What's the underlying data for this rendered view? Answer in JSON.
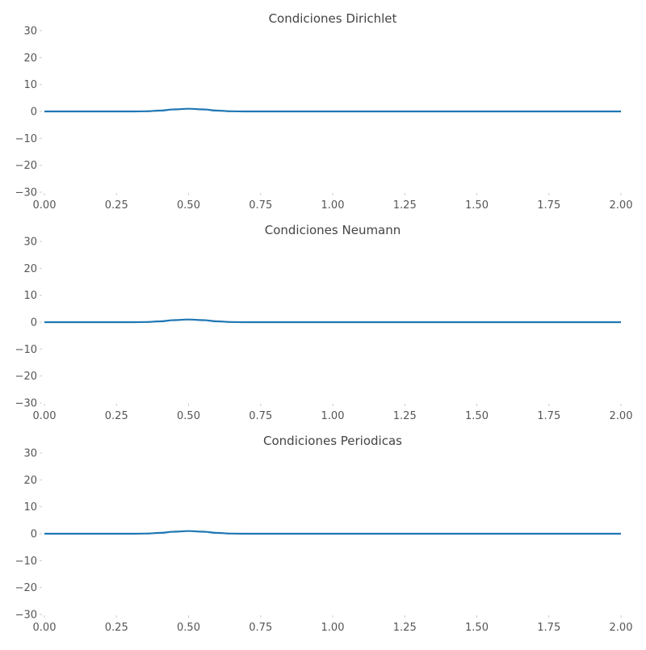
{
  "colors": {
    "series": "#1f77b4",
    "tick_text": "#555555",
    "title_text": "#444444",
    "background": "#ffffff"
  },
  "chart_data": [
    {
      "type": "line",
      "title": "Condiciones Dirichlet",
      "xlabel": "",
      "ylabel": "",
      "xlim": [
        0.0,
        2.0
      ],
      "ylim": [
        -30,
        30
      ],
      "xticks": [
        "0.00",
        "0.25",
        "0.50",
        "0.75",
        "1.00",
        "1.25",
        "1.50",
        "1.75",
        "2.00"
      ],
      "yticks": [
        "30",
        "20",
        "10",
        "0",
        "−10",
        "−20",
        "−30"
      ],
      "grid": false,
      "series": [
        {
          "x": [
            0.0,
            0.3,
            0.35,
            0.4,
            0.45,
            0.5,
            0.55,
            0.6,
            0.65,
            0.7,
            1.0,
            1.5,
            2.0
          ],
          "y": [
            0,
            0,
            0.05,
            0.3,
            0.75,
            1.0,
            0.75,
            0.3,
            0.05,
            0,
            0,
            0,
            0
          ]
        }
      ]
    },
    {
      "type": "line",
      "title": "Condiciones Neumann",
      "xlabel": "",
      "ylabel": "",
      "xlim": [
        0.0,
        2.0
      ],
      "ylim": [
        -30,
        30
      ],
      "xticks": [
        "0.00",
        "0.25",
        "0.50",
        "0.75",
        "1.00",
        "1.25",
        "1.50",
        "1.75",
        "2.00"
      ],
      "yticks": [
        "30",
        "20",
        "10",
        "0",
        "−10",
        "−20",
        "−30"
      ],
      "grid": false,
      "series": [
        {
          "x": [
            0.0,
            0.3,
            0.35,
            0.4,
            0.45,
            0.5,
            0.55,
            0.6,
            0.65,
            0.7,
            1.0,
            1.5,
            2.0
          ],
          "y": [
            0,
            0,
            0.05,
            0.3,
            0.75,
            1.0,
            0.75,
            0.3,
            0.05,
            0,
            0,
            0,
            0
          ]
        }
      ]
    },
    {
      "type": "line",
      "title": "Condiciones Periodicas",
      "xlabel": "",
      "ylabel": "",
      "xlim": [
        0.0,
        2.0
      ],
      "ylim": [
        -30,
        30
      ],
      "xticks": [
        "0.00",
        "0.25",
        "0.50",
        "0.75",
        "1.00",
        "1.25",
        "1.50",
        "1.75",
        "2.00"
      ],
      "yticks": [
        "30",
        "20",
        "10",
        "0",
        "−10",
        "−20",
        "−30"
      ],
      "grid": false,
      "series": [
        {
          "x": [
            0.0,
            0.3,
            0.35,
            0.4,
            0.45,
            0.5,
            0.55,
            0.6,
            0.65,
            0.7,
            1.0,
            1.5,
            2.0
          ],
          "y": [
            0,
            0,
            0.05,
            0.3,
            0.75,
            1.0,
            0.75,
            0.3,
            0.05,
            0,
            0,
            0,
            0
          ]
        }
      ]
    }
  ]
}
